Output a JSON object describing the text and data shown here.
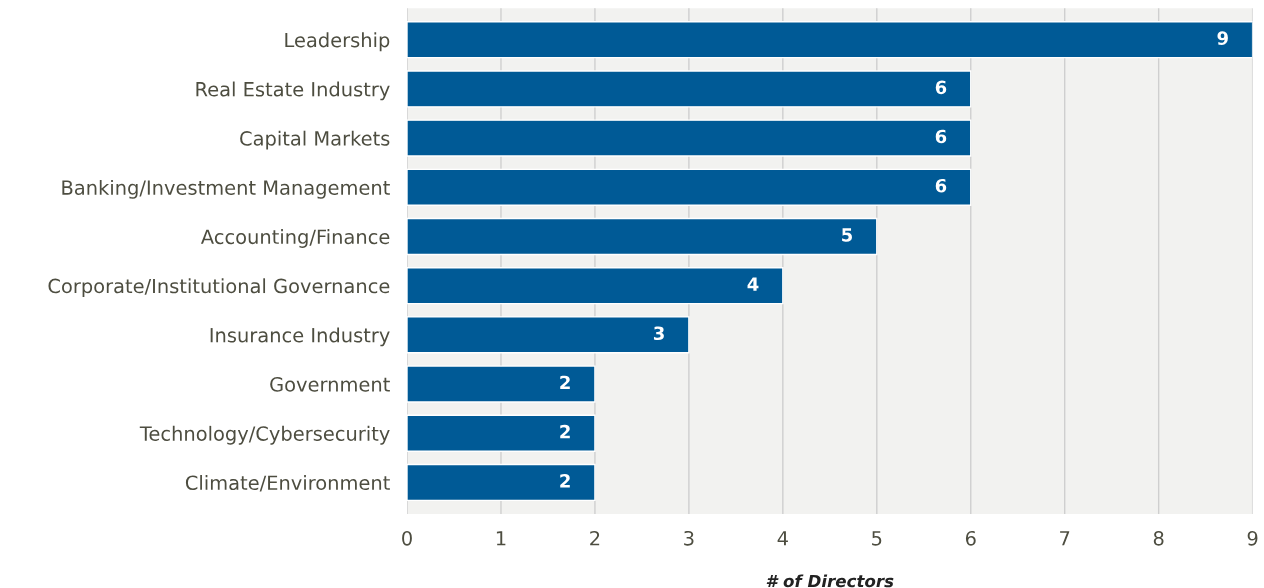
{
  "chart_data": {
    "type": "bar",
    "orientation": "horizontal",
    "xlabel": "# of Directors",
    "categories": [
      "Leadership",
      "Real Estate Industry",
      "Capital Markets",
      "Banking/Investment Management",
      "Accounting/Finance",
      "Corporate/Institutional Governance",
      "Insurance Industry",
      "Government",
      "Technology/Cybersecurity",
      "Climate/Environment"
    ],
    "values": [
      9,
      6,
      6,
      6,
      5,
      4,
      3,
      2,
      2,
      2
    ],
    "color": "#005a96",
    "xlim": [
      0,
      9
    ],
    "xticks": [
      0,
      1,
      2,
      3,
      4,
      5,
      6,
      7,
      8,
      9
    ],
    "grid": "x",
    "legend": false,
    "data_labels": true
  }
}
